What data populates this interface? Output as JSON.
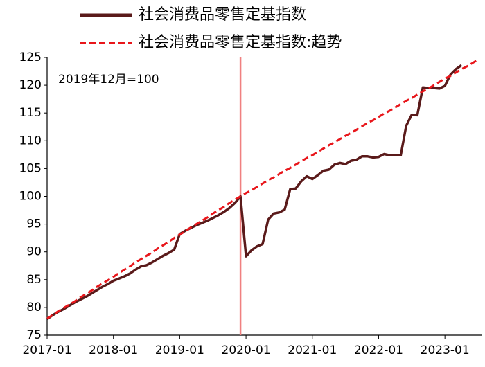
{
  "chart_data": {
    "type": "line",
    "annotation": "2019年12月=100",
    "vline": "2019-12",
    "x": [
      "2017-01",
      "2017-02",
      "2017-03",
      "2017-04",
      "2017-05",
      "2017-06",
      "2017-07",
      "2017-08",
      "2017-09",
      "2017-10",
      "2017-11",
      "2017-12",
      "2018-01",
      "2018-02",
      "2018-03",
      "2018-04",
      "2018-05",
      "2018-06",
      "2018-07",
      "2018-08",
      "2018-09",
      "2018-10",
      "2018-11",
      "2018-12",
      "2019-01",
      "2019-02",
      "2019-03",
      "2019-04",
      "2019-05",
      "2019-06",
      "2019-07",
      "2019-08",
      "2019-09",
      "2019-10",
      "2019-11",
      "2019-12",
      "2020-01",
      "2020-02",
      "2020-03",
      "2020-04",
      "2020-05",
      "2020-06",
      "2020-07",
      "2020-08",
      "2020-09",
      "2020-10",
      "2020-11",
      "2020-12",
      "2021-01",
      "2021-02",
      "2021-03",
      "2021-04",
      "2021-05",
      "2021-06",
      "2021-07",
      "2021-08",
      "2021-09",
      "2021-10",
      "2021-11",
      "2021-12",
      "2022-01",
      "2022-02",
      "2022-03",
      "2022-04",
      "2022-05",
      "2022-06",
      "2022-07",
      "2022-08",
      "2022-09",
      "2022-10",
      "2022-11",
      "2022-12",
      "2023-01",
      "2023-02",
      "2023-03",
      "2023-04",
      "2023-05",
      "2023-06",
      "2023-07"
    ],
    "xticks": [
      "2017-01",
      "2018-01",
      "2019-01",
      "2020-01",
      "2021-01",
      "2022-01",
      "2023-01"
    ],
    "ylim": [
      75,
      125
    ],
    "yticks": [
      75,
      80,
      85,
      90,
      95,
      100,
      105,
      110,
      115,
      120,
      125
    ],
    "series": [
      {
        "name": "社会消费品零售定基指数",
        "color": "#5a1a1a",
        "dash": false,
        "values": [
          77.9,
          78.6,
          79.2,
          79.7,
          80.3,
          80.9,
          81.4,
          81.9,
          82.5,
          83.1,
          83.7,
          84.2,
          84.8,
          85.2,
          85.6,
          86.1,
          86.8,
          87.4,
          87.6,
          88.1,
          88.7,
          89.3,
          89.8,
          90.4,
          93.2,
          93.8,
          94.3,
          94.8,
          95.2,
          95.6,
          96.1,
          96.6,
          97.2,
          97.9,
          98.8,
          100.0,
          89.2,
          90.3,
          91.0,
          91.4,
          95.8,
          96.9,
          97.1,
          97.6,
          101.3,
          101.4,
          102.7,
          103.6,
          103.1,
          103.8,
          104.6,
          104.8,
          105.7,
          106.0,
          105.8,
          106.4,
          106.6,
          107.2,
          107.2,
          107.0,
          107.1,
          107.6,
          107.4,
          107.4,
          107.4,
          112.7,
          114.7,
          114.6,
          119.6,
          119.5,
          119.5,
          119.4,
          119.9,
          121.9,
          122.9,
          123.6,
          null,
          null,
          null
        ]
      },
      {
        "name": "社会消费品零售定基指数:趋势",
        "color": "#e8161b",
        "dash": true,
        "values": [
          78.0,
          78.6,
          79.3,
          79.9,
          80.5,
          81.1,
          81.8,
          82.4,
          83.0,
          83.7,
          84.3,
          84.9,
          85.5,
          86.2,
          86.8,
          87.4,
          88.1,
          88.7,
          89.3,
          89.9,
          90.6,
          91.2,
          91.8,
          92.5,
          93.1,
          93.7,
          94.4,
          95.0,
          95.6,
          96.2,
          96.9,
          97.5,
          98.1,
          98.8,
          99.4,
          100.0,
          100.6,
          101.1,
          101.7,
          102.3,
          102.9,
          103.4,
          104.0,
          104.6,
          105.1,
          105.7,
          106.3,
          106.9,
          107.4,
          108.0,
          108.6,
          109.2,
          109.7,
          110.3,
          110.9,
          111.4,
          112.0,
          112.6,
          113.2,
          113.7,
          114.3,
          114.9,
          115.4,
          116.0,
          116.6,
          117.2,
          117.7,
          118.3,
          118.9,
          119.4,
          120.0,
          120.6,
          121.2,
          121.7,
          122.3,
          122.9,
          123.4,
          124.0,
          124.6
        ]
      }
    ]
  }
}
